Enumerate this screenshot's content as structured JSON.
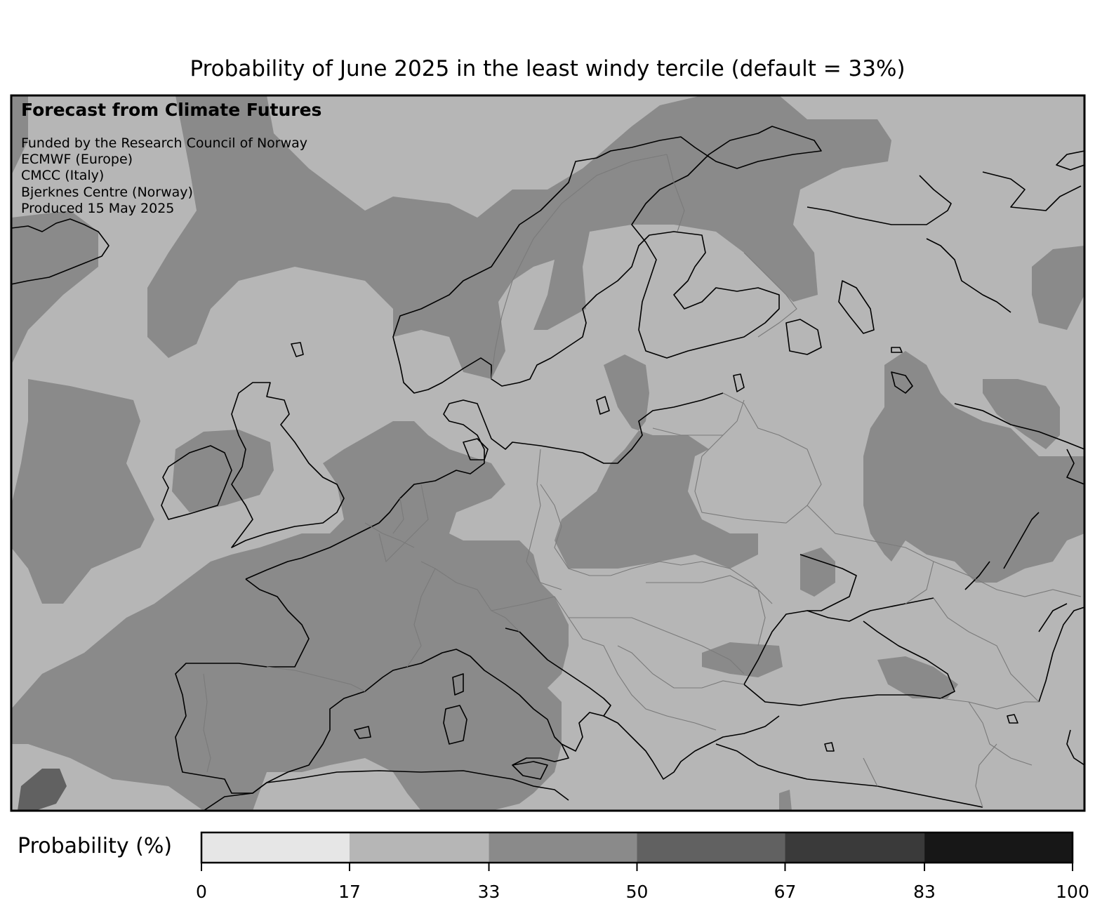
{
  "title": "Probability of June 2025 in the least windy tercile (default = 33%)",
  "credit": {
    "heading": "Forecast from Climate Futures",
    "lines": [
      "Funded by the Research Council of Norway",
      "ECMWF (Europe)",
      "CMCC (Italy)",
      "Bjerknes Centre (Norway)",
      "Produced 15 May 2025"
    ]
  },
  "colorbar": {
    "label": "Probability (%)",
    "ticks": [
      "0",
      "17",
      "33",
      "50",
      "67",
      "83",
      "100"
    ],
    "bins": [
      {
        "from": 0,
        "to": 17,
        "color": "#e6e6e6"
      },
      {
        "from": 17,
        "to": 33,
        "color": "#b6b6b6"
      },
      {
        "from": 33,
        "to": 50,
        "color": "#8a8a8a"
      },
      {
        "from": 50,
        "to": 67,
        "color": "#616161"
      },
      {
        "from": 67,
        "to": 83,
        "color": "#3a3a3a"
      },
      {
        "from": 83,
        "to": 100,
        "color": "#171717"
      }
    ]
  },
  "map_colors": {
    "coastline": "#000000",
    "borders": "#7a7a7a",
    "frame": "#000000"
  }
}
